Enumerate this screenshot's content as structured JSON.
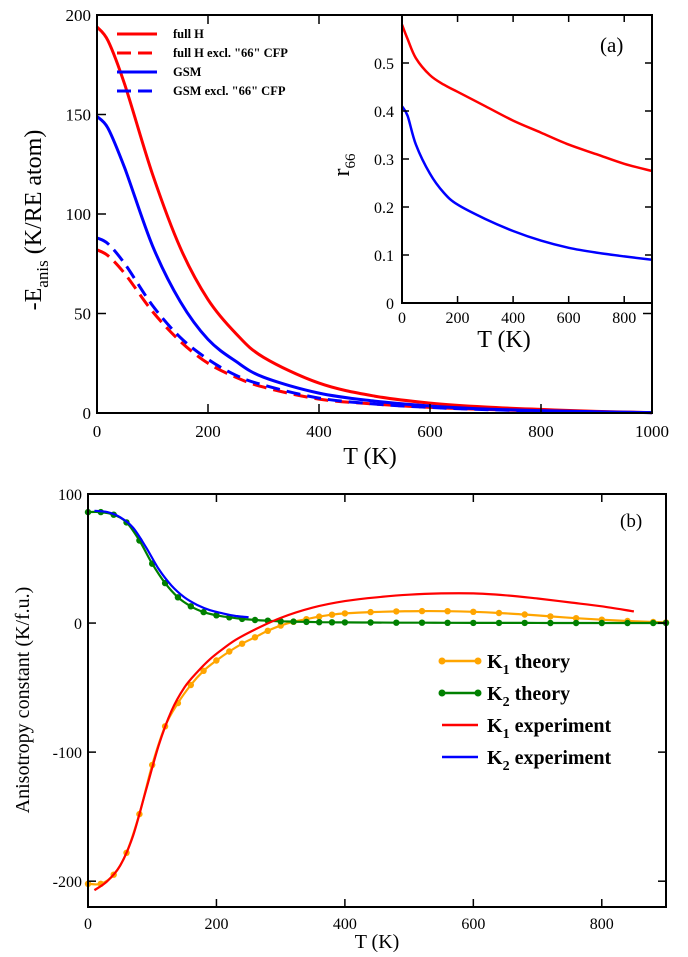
{
  "chart_data": [
    {
      "panel": "main-a",
      "type": "line",
      "tag": "(a)",
      "xlabel": "T (K)",
      "ylabel_main": "-E",
      "ylabel_sub": "anis",
      "ylabel_rest": " (K/RE atom)",
      "xlim": [
        0,
        1000
      ],
      "ylim": [
        0,
        200
      ],
      "xticks": [
        0,
        200,
        400,
        600,
        800,
        1000
      ],
      "yticks": [
        0,
        50,
        100,
        150,
        200
      ],
      "series": [
        {
          "name": "full H",
          "color": "#ff0000",
          "dash": "solid",
          "x": [
            0,
            20,
            50,
            100,
            150,
            200,
            250,
            300,
            400,
            500,
            600,
            700,
            800,
            900,
            1000
          ],
          "y": [
            194,
            187,
            165,
            120,
            83,
            57,
            40,
            28,
            15,
            8.5,
            5,
            3,
            1.8,
            0.8,
            0.2
          ]
        },
        {
          "name": "full H excl. \"66\" CFP",
          "color": "#ff0000",
          "dash": "dashed",
          "x": [
            0,
            20,
            50,
            100,
            150,
            200,
            250,
            300,
            400,
            500,
            600,
            700,
            800,
            900,
            1000
          ],
          "y": [
            82,
            79,
            70,
            51,
            36,
            25,
            18,
            13,
            7,
            4.5,
            2.8,
            1.8,
            1,
            0.5,
            0.2
          ]
        },
        {
          "name": "GSM",
          "color": "#0000ff",
          "dash": "solid",
          "x": [
            0,
            20,
            50,
            100,
            150,
            200,
            250,
            300,
            400,
            500,
            600,
            700,
            800,
            900,
            1000
          ],
          "y": [
            149,
            143,
            123,
            84,
            56,
            37,
            26,
            18,
            10,
            6,
            3.5,
            2,
            1.2,
            0.6,
            0.2
          ]
        },
        {
          "name": "GSM excl. \"66\" CFP",
          "color": "#0000ff",
          "dash": "dashed",
          "x": [
            0,
            20,
            50,
            100,
            150,
            200,
            250,
            300,
            400,
            500,
            600,
            700,
            800,
            900,
            1000
          ],
          "y": [
            88,
            85,
            75,
            54,
            38,
            27,
            19,
            14,
            7.5,
            4.5,
            2.8,
            1.7,
            1,
            0.5,
            0.2
          ]
        }
      ],
      "legend_placement": "top-left"
    },
    {
      "panel": "inset-a",
      "type": "line",
      "xlabel": "T (K)",
      "ylabel_main": "r",
      "ylabel_sub": "66",
      "xlim": [
        0,
        900
      ],
      "ylim": [
        0,
        0.6
      ],
      "xticks": [
        0,
        200,
        400,
        600,
        800
      ],
      "yticks": [
        0,
        0.1,
        0.2,
        0.3,
        0.4,
        0.5
      ],
      "series": [
        {
          "color": "#ff0000",
          "x": [
            0,
            20,
            50,
            100,
            150,
            200,
            300,
            400,
            500,
            600,
            700,
            800,
            900
          ],
          "y": [
            0.58,
            0.55,
            0.51,
            0.475,
            0.455,
            0.44,
            0.41,
            0.38,
            0.355,
            0.33,
            0.31,
            0.29,
            0.275
          ]
        },
        {
          "color": "#0000ff",
          "x": [
            0,
            20,
            50,
            100,
            150,
            200,
            300,
            400,
            500,
            600,
            700,
            800,
            900
          ],
          "y": [
            0.41,
            0.39,
            0.33,
            0.27,
            0.23,
            0.205,
            0.175,
            0.15,
            0.13,
            0.115,
            0.105,
            0.097,
            0.09
          ]
        }
      ]
    },
    {
      "panel": "b",
      "type": "line",
      "tag": "(b)",
      "xlabel": "T (K)",
      "ylabel": "Anisotropy constant (K/f.u.)",
      "xlim": [
        0,
        900
      ],
      "ylim": [
        -220,
        100
      ],
      "xticks": [
        0,
        200,
        400,
        600,
        800
      ],
      "yticks": [
        -200,
        -100,
        0,
        100
      ],
      "series": [
        {
          "name_main": "K",
          "name_sub": "1",
          "name_rest": " theory",
          "color": "#ffa500",
          "markers": true,
          "x": [
            0,
            20,
            40,
            60,
            80,
            100,
            120,
            140,
            160,
            180,
            200,
            220,
            240,
            260,
            280,
            300,
            320,
            340,
            360,
            380,
            400,
            440,
            480,
            520,
            560,
            600,
            640,
            680,
            720,
            760,
            800,
            840,
            880,
            900
          ],
          "y": [
            -202,
            -202,
            -195,
            -178,
            -148,
            -110,
            -80,
            -62,
            -48,
            -37,
            -29,
            -22,
            -16,
            -11,
            -6,
            -2,
            1,
            3,
            5,
            6.5,
            7.5,
            8.5,
            9,
            9.3,
            9.2,
            8.7,
            7.8,
            6.6,
            5.2,
            3.8,
            2.6,
            1.6,
            0.8,
            0.5
          ]
        },
        {
          "name_main": "K",
          "name_sub": "2",
          "name_rest": " theory",
          "color": "#008000",
          "markers": true,
          "x": [
            0,
            20,
            40,
            60,
            80,
            100,
            120,
            140,
            160,
            180,
            200,
            220,
            240,
            260,
            280,
            300,
            320,
            340,
            360,
            380,
            400,
            440,
            480,
            520,
            560,
            600,
            640,
            680,
            720,
            760,
            800,
            840,
            880,
            900
          ],
          "y": [
            86,
            86,
            84,
            78,
            64,
            46,
            31,
            20,
            13,
            8.5,
            6,
            4.5,
            3.2,
            2.4,
            1.8,
            1.4,
            1.1,
            0.9,
            0.7,
            0.6,
            0.5,
            0.4,
            0.3,
            0.25,
            0.2,
            0.15,
            0.12,
            0.1,
            0.08,
            0.06,
            0.05,
            0.04,
            0.03,
            0.02
          ]
        },
        {
          "name_main": "K",
          "name_sub": "1",
          "name_rest": " experiment",
          "color": "#ff0000",
          "markers": false,
          "x": [
            10,
            30,
            50,
            70,
            90,
            110,
            130,
            150,
            170,
            190,
            210,
            230,
            260,
            300,
            350,
            400,
            450,
            500,
            550,
            600,
            650,
            700,
            750,
            800,
            850
          ],
          "y": [
            -207,
            -200,
            -188,
            -165,
            -130,
            -95,
            -68,
            -50,
            -38,
            -28,
            -20,
            -13,
            -5,
            4,
            12,
            17,
            20,
            22,
            23,
            23,
            21.5,
            19,
            16,
            13,
            9
          ]
        },
        {
          "name_main": "K",
          "name_sub": "2",
          "name_rest": " experiment",
          "color": "#0000ff",
          "markers": false,
          "x": [
            10,
            30,
            50,
            70,
            90,
            110,
            130,
            150,
            170,
            190,
            210,
            230,
            250
          ],
          "y": [
            87,
            86,
            82,
            74,
            59,
            42,
            29,
            20,
            14,
            10,
            7.5,
            5.5,
            4.5
          ]
        }
      ],
      "legend_placement": "center-right"
    }
  ]
}
